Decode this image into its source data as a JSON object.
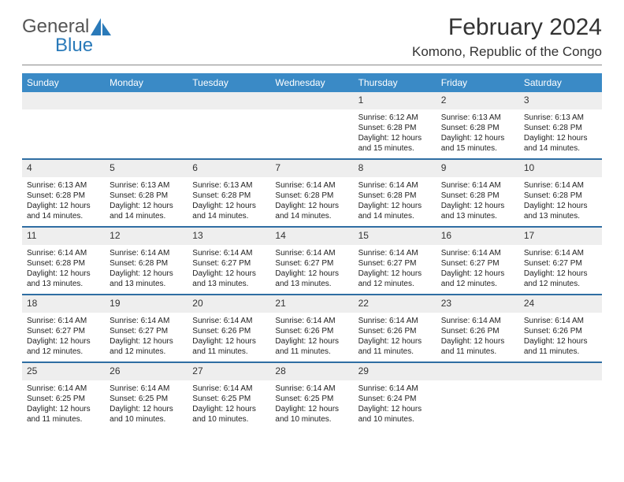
{
  "brand": {
    "word1": "General",
    "word2": "Blue",
    "color_gray": "#555555",
    "color_blue": "#2a7ab9"
  },
  "title": "February 2024",
  "location": "Komono, Republic of the Congo",
  "header_bg": "#3a8ac6",
  "header_text_color": "#ffffff",
  "week_separator_color": "#2f6ea3",
  "daynum_bg": "#eeeeee",
  "page_bg": "#ffffff",
  "day_names": [
    "Sunday",
    "Monday",
    "Tuesday",
    "Wednesday",
    "Thursday",
    "Friday",
    "Saturday"
  ],
  "weeks": [
    [
      {
        "n": "",
        "sunrise": "",
        "sunset": "",
        "daylight": ""
      },
      {
        "n": "",
        "sunrise": "",
        "sunset": "",
        "daylight": ""
      },
      {
        "n": "",
        "sunrise": "",
        "sunset": "",
        "daylight": ""
      },
      {
        "n": "",
        "sunrise": "",
        "sunset": "",
        "daylight": ""
      },
      {
        "n": "1",
        "sunrise": "Sunrise: 6:12 AM",
        "sunset": "Sunset: 6:28 PM",
        "daylight": "Daylight: 12 hours and 15 minutes."
      },
      {
        "n": "2",
        "sunrise": "Sunrise: 6:13 AM",
        "sunset": "Sunset: 6:28 PM",
        "daylight": "Daylight: 12 hours and 15 minutes."
      },
      {
        "n": "3",
        "sunrise": "Sunrise: 6:13 AM",
        "sunset": "Sunset: 6:28 PM",
        "daylight": "Daylight: 12 hours and 14 minutes."
      }
    ],
    [
      {
        "n": "4",
        "sunrise": "Sunrise: 6:13 AM",
        "sunset": "Sunset: 6:28 PM",
        "daylight": "Daylight: 12 hours and 14 minutes."
      },
      {
        "n": "5",
        "sunrise": "Sunrise: 6:13 AM",
        "sunset": "Sunset: 6:28 PM",
        "daylight": "Daylight: 12 hours and 14 minutes."
      },
      {
        "n": "6",
        "sunrise": "Sunrise: 6:13 AM",
        "sunset": "Sunset: 6:28 PM",
        "daylight": "Daylight: 12 hours and 14 minutes."
      },
      {
        "n": "7",
        "sunrise": "Sunrise: 6:14 AM",
        "sunset": "Sunset: 6:28 PM",
        "daylight": "Daylight: 12 hours and 14 minutes."
      },
      {
        "n": "8",
        "sunrise": "Sunrise: 6:14 AM",
        "sunset": "Sunset: 6:28 PM",
        "daylight": "Daylight: 12 hours and 14 minutes."
      },
      {
        "n": "9",
        "sunrise": "Sunrise: 6:14 AM",
        "sunset": "Sunset: 6:28 PM",
        "daylight": "Daylight: 12 hours and 13 minutes."
      },
      {
        "n": "10",
        "sunrise": "Sunrise: 6:14 AM",
        "sunset": "Sunset: 6:28 PM",
        "daylight": "Daylight: 12 hours and 13 minutes."
      }
    ],
    [
      {
        "n": "11",
        "sunrise": "Sunrise: 6:14 AM",
        "sunset": "Sunset: 6:28 PM",
        "daylight": "Daylight: 12 hours and 13 minutes."
      },
      {
        "n": "12",
        "sunrise": "Sunrise: 6:14 AM",
        "sunset": "Sunset: 6:28 PM",
        "daylight": "Daylight: 12 hours and 13 minutes."
      },
      {
        "n": "13",
        "sunrise": "Sunrise: 6:14 AM",
        "sunset": "Sunset: 6:27 PM",
        "daylight": "Daylight: 12 hours and 13 minutes."
      },
      {
        "n": "14",
        "sunrise": "Sunrise: 6:14 AM",
        "sunset": "Sunset: 6:27 PM",
        "daylight": "Daylight: 12 hours and 13 minutes."
      },
      {
        "n": "15",
        "sunrise": "Sunrise: 6:14 AM",
        "sunset": "Sunset: 6:27 PM",
        "daylight": "Daylight: 12 hours and 12 minutes."
      },
      {
        "n": "16",
        "sunrise": "Sunrise: 6:14 AM",
        "sunset": "Sunset: 6:27 PM",
        "daylight": "Daylight: 12 hours and 12 minutes."
      },
      {
        "n": "17",
        "sunrise": "Sunrise: 6:14 AM",
        "sunset": "Sunset: 6:27 PM",
        "daylight": "Daylight: 12 hours and 12 minutes."
      }
    ],
    [
      {
        "n": "18",
        "sunrise": "Sunrise: 6:14 AM",
        "sunset": "Sunset: 6:27 PM",
        "daylight": "Daylight: 12 hours and 12 minutes."
      },
      {
        "n": "19",
        "sunrise": "Sunrise: 6:14 AM",
        "sunset": "Sunset: 6:27 PM",
        "daylight": "Daylight: 12 hours and 12 minutes."
      },
      {
        "n": "20",
        "sunrise": "Sunrise: 6:14 AM",
        "sunset": "Sunset: 6:26 PM",
        "daylight": "Daylight: 12 hours and 11 minutes."
      },
      {
        "n": "21",
        "sunrise": "Sunrise: 6:14 AM",
        "sunset": "Sunset: 6:26 PM",
        "daylight": "Daylight: 12 hours and 11 minutes."
      },
      {
        "n": "22",
        "sunrise": "Sunrise: 6:14 AM",
        "sunset": "Sunset: 6:26 PM",
        "daylight": "Daylight: 12 hours and 11 minutes."
      },
      {
        "n": "23",
        "sunrise": "Sunrise: 6:14 AM",
        "sunset": "Sunset: 6:26 PM",
        "daylight": "Daylight: 12 hours and 11 minutes."
      },
      {
        "n": "24",
        "sunrise": "Sunrise: 6:14 AM",
        "sunset": "Sunset: 6:26 PM",
        "daylight": "Daylight: 12 hours and 11 minutes."
      }
    ],
    [
      {
        "n": "25",
        "sunrise": "Sunrise: 6:14 AM",
        "sunset": "Sunset: 6:25 PM",
        "daylight": "Daylight: 12 hours and 11 minutes."
      },
      {
        "n": "26",
        "sunrise": "Sunrise: 6:14 AM",
        "sunset": "Sunset: 6:25 PM",
        "daylight": "Daylight: 12 hours and 10 minutes."
      },
      {
        "n": "27",
        "sunrise": "Sunrise: 6:14 AM",
        "sunset": "Sunset: 6:25 PM",
        "daylight": "Daylight: 12 hours and 10 minutes."
      },
      {
        "n": "28",
        "sunrise": "Sunrise: 6:14 AM",
        "sunset": "Sunset: 6:25 PM",
        "daylight": "Daylight: 12 hours and 10 minutes."
      },
      {
        "n": "29",
        "sunrise": "Sunrise: 6:14 AM",
        "sunset": "Sunset: 6:24 PM",
        "daylight": "Daylight: 12 hours and 10 minutes."
      },
      {
        "n": "",
        "sunrise": "",
        "sunset": "",
        "daylight": ""
      },
      {
        "n": "",
        "sunrise": "",
        "sunset": "",
        "daylight": ""
      }
    ]
  ]
}
